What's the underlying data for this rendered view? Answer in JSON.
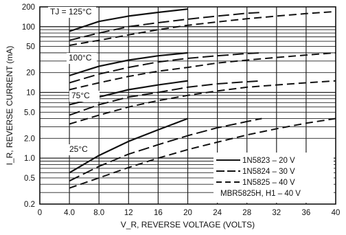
{
  "chart_data": {
    "type": "line",
    "title": "",
    "xlabel": "V_R, REVERSE VOLTAGE (VOLTS)",
    "ylabel": "I_R, REVERSE CURRENT (mA)",
    "xlim": [
      0,
      40
    ],
    "ylim": [
      0.2,
      200
    ],
    "yscale": "log",
    "grid": true,
    "xticks": [
      "0",
      "4.0",
      "8.0",
      "12",
      "16",
      "20",
      "24",
      "28",
      "32",
      "36",
      "40"
    ],
    "yticks": [
      "0.2",
      "0.5",
      "1.0",
      "2.0",
      "5.0",
      "10",
      "20",
      "50",
      "100",
      "200"
    ],
    "temperature_labels": [
      "TJ = 125°C",
      "100°C",
      "75°C",
      "25°C"
    ],
    "legend": {
      "placement": "bottom-right",
      "entries": [
        "1N5823 – 20 V",
        "1N5824 – 30 V",
        "1N5825 – 40 V",
        "MBR5825H, H1 – 40 V"
      ]
    },
    "series": [
      {
        "name": "1N5823 – 20 V",
        "temperature": "125°C",
        "x": [
          4,
          8,
          12,
          16,
          20
        ],
        "y": [
          85,
          120,
          145,
          165,
          185
        ]
      },
      {
        "name": "1N5824 – 30 V",
        "temperature": "125°C",
        "x": [
          4,
          8,
          12,
          16,
          20,
          24,
          28,
          30
        ],
        "y": [
          62,
          80,
          100,
          115,
          130,
          145,
          160,
          165
        ]
      },
      {
        "name": "1N5825 – 40 V",
        "temperature": "125°C",
        "x": [
          4,
          8,
          12,
          16,
          20,
          24,
          28,
          32,
          36,
          40
        ],
        "y": [
          52,
          62,
          75,
          90,
          105,
          118,
          132,
          145,
          158,
          170
        ]
      },
      {
        "name": "1N5823 – 20 V",
        "temperature": "100°C",
        "x": [
          4,
          8,
          12,
          16,
          20
        ],
        "y": [
          18,
          25,
          31,
          36,
          40
        ]
      },
      {
        "name": "1N5824 – 30 V",
        "temperature": "100°C",
        "x": [
          4,
          8,
          12,
          16,
          20,
          24,
          28,
          30
        ],
        "y": [
          14,
          19,
          24,
          29,
          33,
          36,
          39,
          40
        ]
      },
      {
        "name": "1N5825 – 40 V",
        "temperature": "100°C",
        "x": [
          4,
          8,
          12,
          16,
          20,
          24,
          28,
          32,
          36,
          40
        ],
        "y": [
          11,
          14,
          17.5,
          21,
          24,
          28,
          31,
          34,
          37,
          40
        ]
      },
      {
        "name": "1N5823 – 20 V",
        "temperature": "75°C",
        "x": [
          4,
          8,
          12,
          16,
          20
        ],
        "y": [
          6.5,
          8.5,
          11,
          13,
          15
        ]
      },
      {
        "name": "1N5824 – 30 V",
        "temperature": "75°C",
        "x": [
          4,
          8,
          12,
          16,
          20,
          24,
          28,
          30
        ],
        "y": [
          4.5,
          6.5,
          8.5,
          10,
          12,
          13.5,
          14.5,
          15
        ]
      },
      {
        "name": "1N5825 – 40 V",
        "temperature": "75°C",
        "x": [
          4,
          8,
          12,
          16,
          20,
          24,
          28,
          32,
          36,
          40
        ],
        "y": [
          3.3,
          4.5,
          6,
          7.5,
          9,
          10.5,
          12,
          13,
          14,
          15
        ]
      },
      {
        "name": "1N5823 – 20 V",
        "temperature": "25°C",
        "x": [
          4,
          8,
          12,
          16,
          20
        ],
        "y": [
          0.6,
          1.1,
          1.8,
          2.7,
          4.0
        ]
      },
      {
        "name": "1N5824 – 30 V",
        "temperature": "25°C",
        "x": [
          4,
          8,
          12,
          16,
          20,
          24,
          28,
          30
        ],
        "y": [
          0.45,
          0.75,
          1.15,
          1.6,
          2.2,
          2.9,
          3.6,
          4.0
        ]
      },
      {
        "name": "1N5825 – 40 V",
        "temperature": "25°C",
        "x": [
          4,
          8,
          12,
          16,
          20,
          24,
          28,
          32,
          36,
          40
        ],
        "y": [
          0.35,
          0.5,
          0.72,
          1.0,
          1.35,
          1.75,
          2.25,
          2.8,
          3.4,
          4.0
        ]
      }
    ]
  }
}
